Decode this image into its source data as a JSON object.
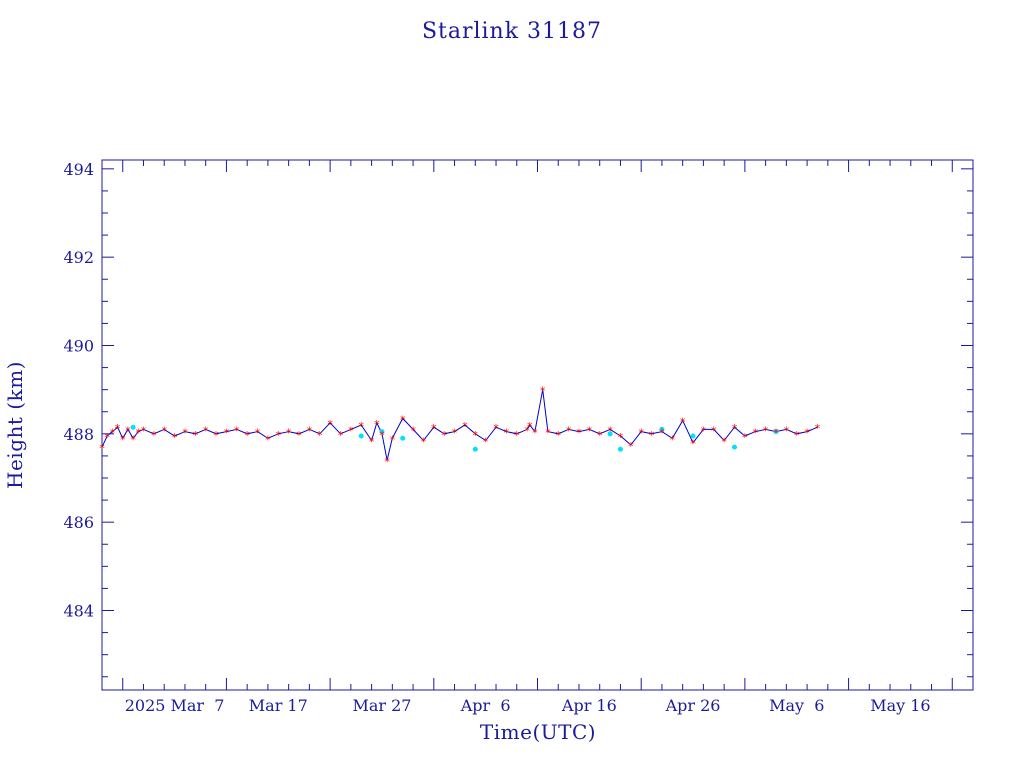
{
  "chart_data": {
    "type": "line",
    "title": "Starlink 31187",
    "xlabel": "Time(UTC)",
    "ylabel": "Height (km)",
    "ylim": [
      482.2,
      494.2
    ],
    "y_ticks": [
      484,
      486,
      488,
      490,
      492,
      494
    ],
    "y_tick_labels": [
      "484",
      "486",
      "488",
      "490",
      "492",
      "494"
    ],
    "xlim": [
      "2025-02-23T00:00",
      "2025-05-18T00:00"
    ],
    "x_ticks": [
      "2025-02-25",
      "2025-03-07",
      "2025-03-17",
      "2025-03-27",
      "2025-04-06",
      "2025-04-16",
      "2025-04-26",
      "2025-05-06",
      "2025-05-16"
    ],
    "x_tick_labels": [
      "2025 Mar  7",
      "Mar 17",
      "Mar 27",
      "Apr  6",
      "Apr 16",
      "Apr 26",
      "May  6",
      "May 16"
    ],
    "colors": {
      "axes": "#1a1a9c",
      "line": "#0000cc",
      "markers": "#ff0000",
      "secondary_markers": "#00e0ff"
    },
    "series": [
      {
        "marker": "star",
        "x": [
          "2025-02-23T00:00",
          "2025-02-23T12:00",
          "2025-02-24T00:00",
          "2025-02-24T12:00",
          "2025-02-25T00:00",
          "2025-02-25T12:00",
          "2025-02-26T00:00",
          "2025-02-26T12:00",
          "2025-02-27T00:00",
          "2025-02-28T00:00",
          "2025-03-01T00:00",
          "2025-03-02T00:00",
          "2025-03-03T00:00",
          "2025-03-04T00:00",
          "2025-03-05T00:00",
          "2025-03-06T00:00",
          "2025-03-07T00:00",
          "2025-03-08T00:00",
          "2025-03-09T00:00",
          "2025-03-10T00:00",
          "2025-03-11T00:00",
          "2025-03-12T00:00",
          "2025-03-13T00:00",
          "2025-03-14T00:00",
          "2025-03-15T00:00",
          "2025-03-16T00:00",
          "2025-03-17T00:00",
          "2025-03-18T00:00",
          "2025-03-19T00:00",
          "2025-03-20T00:00",
          "2025-03-21T00:00",
          "2025-03-21T12:00",
          "2025-03-22T00:00",
          "2025-03-22T12:00",
          "2025-03-23T00:00",
          "2025-03-24T00:00",
          "2025-03-25T00:00",
          "2025-03-26T00:00",
          "2025-03-27T00:00",
          "2025-03-28T00:00",
          "2025-03-29T00:00",
          "2025-03-30T00:00",
          "2025-03-31T00:00",
          "2025-04-01T00:00",
          "2025-04-02T00:00",
          "2025-04-03T00:00",
          "2025-04-04T00:00",
          "2025-04-05T00:00",
          "2025-04-05T06:00",
          "2025-04-05T18:00",
          "2025-04-06T12:00",
          "2025-04-07T00:00",
          "2025-04-08T00:00",
          "2025-04-09T00:00",
          "2025-04-10T00:00",
          "2025-04-11T00:00",
          "2025-04-12T00:00",
          "2025-04-13T00:00",
          "2025-04-14T00:00",
          "2025-04-15T00:00",
          "2025-04-16T00:00",
          "2025-04-17T00:00",
          "2025-04-18T00:00",
          "2025-04-19T00:00",
          "2025-04-20T00:00",
          "2025-04-21T00:00",
          "2025-04-22T00:00",
          "2025-04-23T00:00",
          "2025-04-24T00:00",
          "2025-04-25T00:00",
          "2025-04-26T00:00",
          "2025-04-27T00:00",
          "2025-04-28T00:00",
          "2025-04-29T00:00",
          "2025-04-30T00:00",
          "2025-05-01T00:00",
          "2025-05-02T00:00",
          "2025-05-03T00:00"
        ],
        "y": [
          487.7,
          487.95,
          488.05,
          488.15,
          487.9,
          488.1,
          487.9,
          488.05,
          488.1,
          488.0,
          488.1,
          487.95,
          488.05,
          488.0,
          488.1,
          488.0,
          488.05,
          488.1,
          488.0,
          488.05,
          487.9,
          488.0,
          488.05,
          488.0,
          488.1,
          488.0,
          488.25,
          488.0,
          488.1,
          488.2,
          487.85,
          488.25,
          488.0,
          487.4,
          487.9,
          488.35,
          488.1,
          487.85,
          488.15,
          488.0,
          488.05,
          488.2,
          488.0,
          487.85,
          488.15,
          488.05,
          488.0,
          488.1,
          488.2,
          488.05,
          489.0,
          488.05,
          488.0,
          488.1,
          488.05,
          488.1,
          488.0,
          488.1,
          487.95,
          487.75,
          488.05,
          488.0,
          488.05,
          487.9,
          488.3,
          487.8,
          488.1,
          488.1,
          487.85,
          488.15,
          487.95,
          488.05,
          488.1,
          488.05,
          488.1,
          488.0,
          488.05,
          488.15
        ]
      },
      {
        "marker": "dot",
        "x": [
          "2025-02-26T00:00",
          "2025-03-20T00:00",
          "2025-03-22T00:00",
          "2025-03-24T00:00",
          "2025-03-31T00:00",
          "2025-04-13T00:00",
          "2025-04-14T00:00",
          "2025-04-18T00:00",
          "2025-04-21T00:00",
          "2025-04-25T00:00",
          "2025-04-29T00:00"
        ],
        "y": [
          488.15,
          487.95,
          488.05,
          487.9,
          487.65,
          488.0,
          487.65,
          488.1,
          487.95,
          487.7,
          488.05
        ]
      }
    ]
  }
}
